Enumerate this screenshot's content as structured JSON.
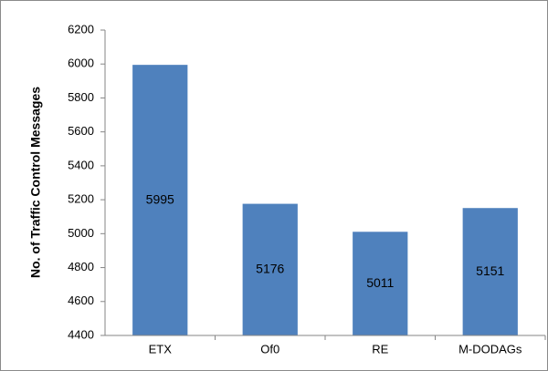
{
  "chart_data": {
    "type": "bar",
    "y_label": "No. of Traffic Control Messages",
    "categories": [
      "ETX",
      "Of0",
      "RE",
      "M-DODAGs"
    ],
    "values": [
      5995,
      5176,
      5011,
      5151
    ],
    "color": "#4f81bd",
    "ylim": [
      4400,
      6200
    ],
    "yticks": [
      4400,
      4600,
      4800,
      5000,
      5200,
      5400,
      5600,
      5800,
      6000,
      6200
    ],
    "grid": false,
    "data_labels": true
  }
}
